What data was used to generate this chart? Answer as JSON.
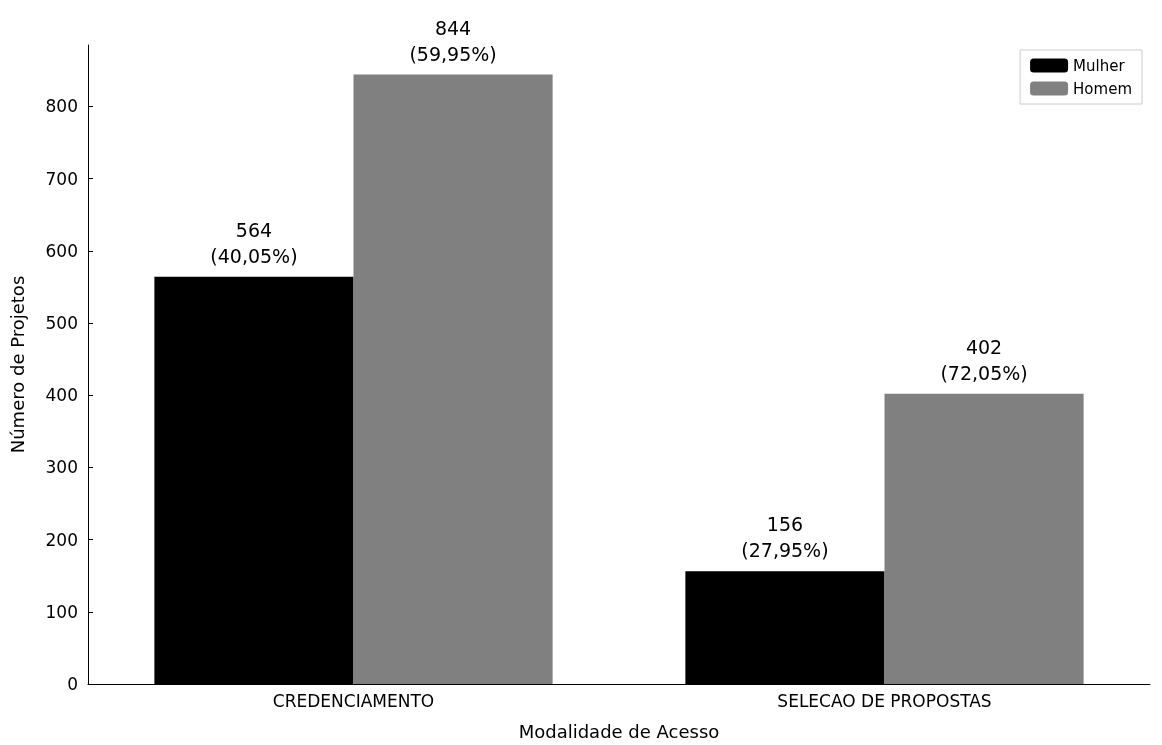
{
  "chart_data": {
    "type": "bar",
    "xlabel": "Modalidade de Acesso",
    "ylabel": "Número de Projetos",
    "categories": [
      "CREDENCIAMENTO",
      "SELECAO DE PROPOSTAS"
    ],
    "series": [
      {
        "name": "Mulher",
        "color": "#000000",
        "values": [
          564,
          156
        ],
        "value_labels": [
          "564\n(40,05%)",
          "156\n(27,95%)"
        ]
      },
      {
        "name": "Homem",
        "color": "#808080",
        "values": [
          844,
          402
        ],
        "value_labels": [
          "844\n(59,95%)",
          "402\n(72,05%)"
        ]
      }
    ],
    "ylim": [
      0,
      885
    ],
    "yticks": [
      0,
      100,
      200,
      300,
      400,
      500,
      600,
      700,
      800
    ],
    "grid": false,
    "legend": "top right"
  }
}
